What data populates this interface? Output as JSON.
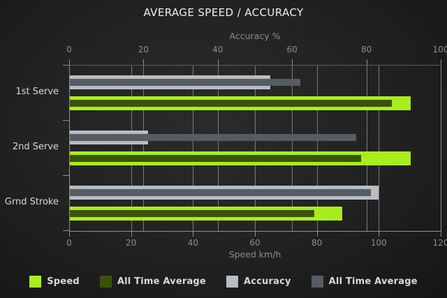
{
  "chart_data": {
    "type": "bar",
    "orientation": "horizontal",
    "title": "AVERAGE SPEED / ACCURACY",
    "categories": [
      "1st Serve",
      "2nd Serve",
      "Grnd Stroke"
    ],
    "axes": {
      "top": {
        "label": "Accuracy %",
        "min": 0,
        "max": 100,
        "ticks": [
          0,
          20,
          40,
          60,
          80,
          100
        ]
      },
      "bottom": {
        "label": "Speed km/h",
        "min": 0,
        "max": 120,
        "ticks": [
          0,
          20,
          40,
          60,
          80,
          100,
          120
        ]
      }
    },
    "grid": true,
    "legend_position": "bottom",
    "series": [
      {
        "name": "Speed",
        "axis": "bottom",
        "role": "speed",
        "color": "#a8ee1c",
        "values": [
          110,
          110,
          88
        ]
      },
      {
        "name": "All Time Average",
        "axis": "bottom",
        "role": "speed-alltime",
        "color": "#3a520b",
        "values": [
          104,
          94,
          79
        ]
      },
      {
        "name": "Accuracy",
        "axis": "top",
        "role": "accuracy",
        "color": "#b7bdc3",
        "values": [
          54,
          21,
          83
        ]
      },
      {
        "name": "All Time Average",
        "axis": "top",
        "role": "accuracy-alltime",
        "color": "#555c64",
        "values": [
          62,
          77,
          81
        ]
      }
    ],
    "colors": {
      "background": "#1f1f1f",
      "gridline": "#8c8c8c",
      "axis_text": "#8d8d8d",
      "category_text": "#d9d9d9",
      "title_text": "#efefef"
    }
  }
}
